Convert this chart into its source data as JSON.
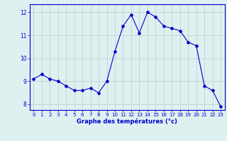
{
  "hours": [
    0,
    1,
    2,
    3,
    4,
    5,
    6,
    7,
    8,
    9,
    10,
    11,
    12,
    13,
    14,
    15,
    16,
    17,
    18,
    19,
    20,
    21,
    22,
    23
  ],
  "temperatures": [
    9.1,
    9.3,
    9.1,
    9.0,
    8.8,
    8.6,
    8.6,
    8.7,
    8.5,
    9.0,
    10.3,
    11.4,
    11.9,
    11.1,
    12.0,
    11.8,
    11.4,
    11.3,
    11.2,
    10.7,
    10.55,
    8.8,
    8.6,
    7.9
  ],
  "xlabel": "Graphe des températures (°c)",
  "ylim": [
    7.75,
    12.35
  ],
  "xlim": [
    -0.5,
    23.5
  ],
  "yticks": [
    8,
    9,
    10,
    11,
    12
  ],
  "xticks": [
    0,
    1,
    2,
    3,
    4,
    5,
    6,
    7,
    8,
    9,
    10,
    11,
    12,
    13,
    14,
    15,
    16,
    17,
    18,
    19,
    20,
    21,
    22,
    23
  ],
  "line_color": "#0000cc",
  "marker": "D",
  "marker_size": 2.0,
  "bg_color": "#dff0f0",
  "grid_color": "#b8cece",
  "axis_color": "#0000cc",
  "label_color": "#0000cc",
  "tick_label_color": "#0000cc"
}
